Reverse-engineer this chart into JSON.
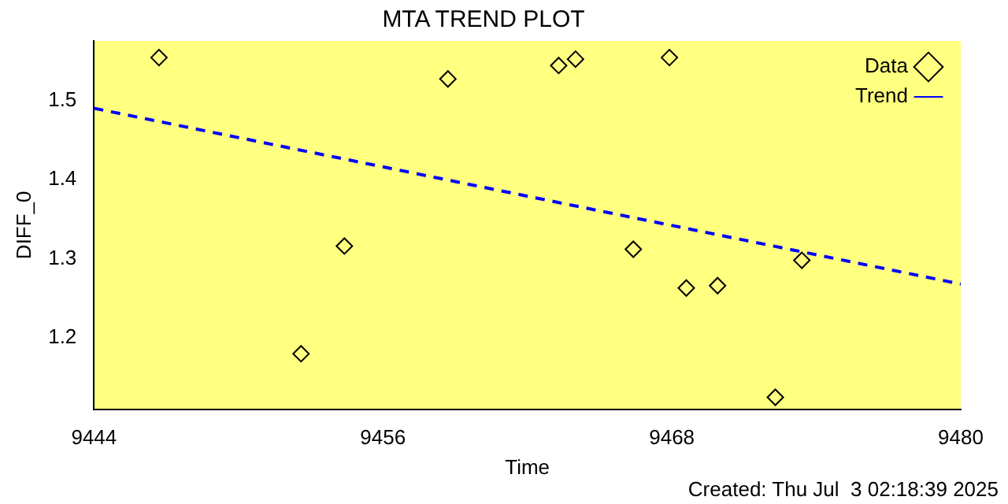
{
  "chart_data": {
    "type": "scatter",
    "title": "MTA TREND PLOT",
    "xlabel": "Time",
    "ylabel": "DIFF_0",
    "annotations": [
      "Created: Thu Jul  3 02:18:39 2025"
    ],
    "xlim": [
      9444,
      9480
    ],
    "xticks": [
      9444,
      9456,
      9468,
      9480
    ],
    "ylim": [
      1.11,
      1.575
    ],
    "yticks": [
      1.2,
      1.3,
      1.4,
      1.5
    ],
    "grid": false,
    "legend": "top right",
    "series": [
      {
        "name": "Data",
        "marker": "diamond",
        "color": "#000000",
        "x": [
          9446.7,
          9452.6,
          9454.4,
          9458.7,
          9463.3,
          9464.0,
          9466.4,
          9467.9,
          9468.6,
          9469.9,
          9472.3,
          9473.4
        ],
        "values": [
          1.554,
          1.18,
          1.316,
          1.527,
          1.544,
          1.552,
          1.312,
          1.554,
          1.263,
          1.266,
          1.125,
          1.298
        ]
      },
      {
        "name": "Trend",
        "type": "line",
        "marker": "none",
        "line_style": "dashed",
        "color": "#0000ff",
        "x": [
          9444,
          9480
        ],
        "values": [
          1.49,
          1.268
        ]
      }
    ]
  }
}
